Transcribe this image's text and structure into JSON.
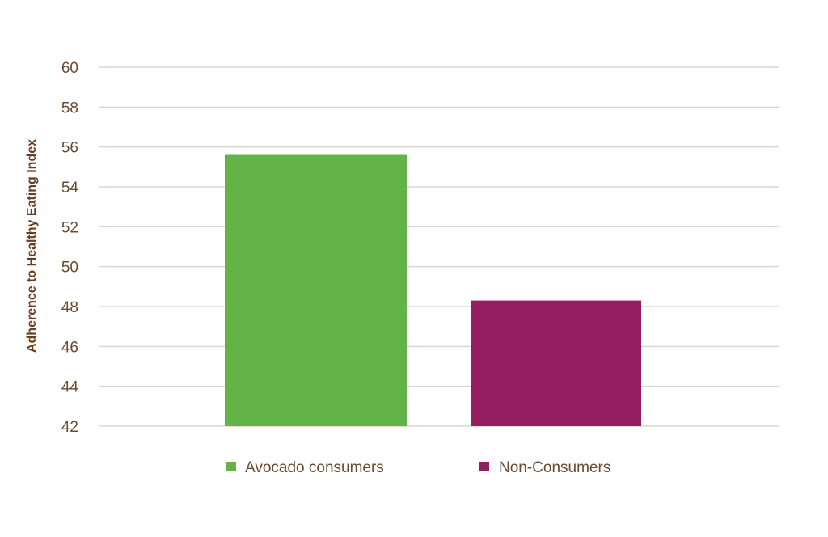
{
  "chart_data": {
    "type": "bar",
    "title": "",
    "xlabel": "",
    "ylabel": "Adherence to Healthy Eating Index",
    "ylim": [
      42,
      60
    ],
    "yticks": [
      42,
      44,
      46,
      48,
      50,
      52,
      54,
      56,
      58,
      60
    ],
    "grid": true,
    "legend_placement": "bottom",
    "series": [
      {
        "name": "Avocado consumers",
        "value": 55.6,
        "color": "#62b447"
      },
      {
        "name": "Non-Consumers",
        "value": 48.3,
        "color": "#951e62"
      }
    ]
  }
}
